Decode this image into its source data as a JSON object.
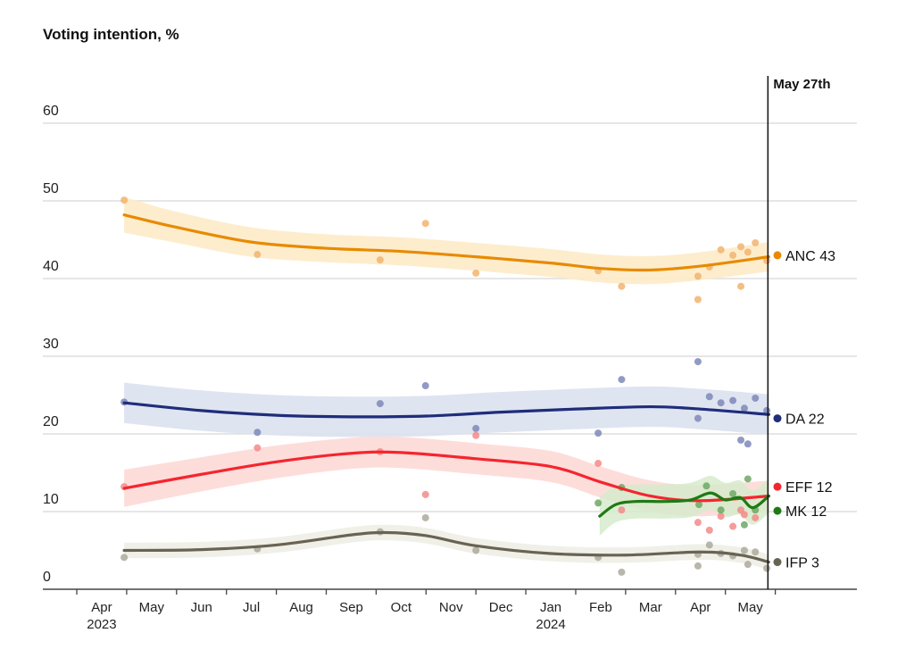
{
  "chart_data": {
    "type": "line",
    "title": "Voting intention, %",
    "xlabel": "",
    "ylabel": "Voting intention, %",
    "ylim": [
      0,
      60
    ],
    "yticks": [
      0,
      10,
      20,
      30,
      40,
      50,
      60
    ],
    "x_unit": "months since Apr 1 2023",
    "xlim": [
      0,
      15.5
    ],
    "xticks": [
      {
        "t": 0.5,
        "label": "Apr",
        "year": "2023"
      },
      {
        "t": 1.5,
        "label": "May"
      },
      {
        "t": 2.5,
        "label": "Jun"
      },
      {
        "t": 3.5,
        "label": "Jul"
      },
      {
        "t": 4.5,
        "label": "Aug"
      },
      {
        "t": 5.5,
        "label": "Sep"
      },
      {
        "t": 6.5,
        "label": "Oct"
      },
      {
        "t": 7.5,
        "label": "Nov"
      },
      {
        "t": 8.5,
        "label": "Dec"
      },
      {
        "t": 9.5,
        "label": "Jan",
        "year": "2024"
      },
      {
        "t": 10.5,
        "label": "Feb"
      },
      {
        "t": 11.5,
        "label": "Mar"
      },
      {
        "t": 12.5,
        "label": "Apr"
      },
      {
        "t": 13.5,
        "label": "May"
      }
    ],
    "tick_marks": [
      0,
      1,
      2,
      3,
      4,
      5,
      6,
      7,
      8,
      9,
      10,
      11,
      12,
      13,
      14
    ],
    "grid": true,
    "reference_line": {
      "t": 13.87,
      "label": "May 27th"
    },
    "series": [
      {
        "name": "ANC",
        "end_value": 43,
        "label": "ANC 43",
        "color": "#E88A00",
        "band": "#FDEBC8",
        "dot": "#F2B36E",
        "trend": [
          [
            0.95,
            48.2
          ],
          [
            2,
            46.6
          ],
          [
            3.5,
            44.7
          ],
          [
            5,
            43.9
          ],
          [
            6.5,
            43.5
          ],
          [
            8,
            42.8
          ],
          [
            9.5,
            42
          ],
          [
            10.5,
            41.3
          ],
          [
            11.5,
            41.1
          ],
          [
            12.5,
            41.6
          ],
          [
            13.87,
            42.8
          ]
        ],
        "band_width": [
          2.3,
          2.0,
          1.9,
          1.8,
          1.8,
          1.8,
          1.8,
          1.8,
          1.8,
          1.8,
          1.9
        ],
        "points": [
          [
            0.95,
            50.1
          ],
          [
            3.62,
            43.1
          ],
          [
            6.08,
            42.4
          ],
          [
            6.99,
            47.1
          ],
          [
            8.0,
            40.7
          ],
          [
            10.45,
            41
          ],
          [
            10.92,
            39
          ],
          [
            12.45,
            40.3
          ],
          [
            12.45,
            37.3
          ],
          [
            12.68,
            41.5
          ],
          [
            12.91,
            43.7
          ],
          [
            13.15,
            43
          ],
          [
            13.31,
            44.1
          ],
          [
            13.31,
            39
          ],
          [
            13.45,
            43.4
          ],
          [
            13.6,
            44.6
          ],
          [
            13.83,
            42.3
          ]
        ]
      },
      {
        "name": "DA",
        "end_value": 22,
        "label": "DA 22",
        "color": "#1F2D7A",
        "band": "#DCE1EF",
        "dot": "#7E88B8",
        "trend": [
          [
            0.95,
            24
          ],
          [
            2.5,
            23
          ],
          [
            4,
            22.4
          ],
          [
            5.5,
            22.2
          ],
          [
            7,
            22.3
          ],
          [
            8.5,
            22.8
          ],
          [
            10,
            23.2
          ],
          [
            11.5,
            23.5
          ],
          [
            12.5,
            23.2
          ],
          [
            13.87,
            22.5
          ]
        ],
        "band_width": [
          2.6,
          2.6,
          2.6,
          2.6,
          2.6,
          2.6,
          2.6,
          2.6,
          2.6,
          2.6
        ],
        "points": [
          [
            0.95,
            24.1
          ],
          [
            3.62,
            20.2
          ],
          [
            6.08,
            23.9
          ],
          [
            6.99,
            26.2
          ],
          [
            8.0,
            20.7
          ],
          [
            10.45,
            20.1
          ],
          [
            10.92,
            27
          ],
          [
            12.45,
            29.3
          ],
          [
            12.45,
            22
          ],
          [
            12.68,
            24.8
          ],
          [
            12.91,
            24
          ],
          [
            13.15,
            24.3
          ],
          [
            13.38,
            23.3
          ],
          [
            13.6,
            24.6
          ],
          [
            13.83,
            23
          ],
          [
            13.31,
            19.2
          ],
          [
            13.45,
            18.7
          ]
        ]
      },
      {
        "name": "EFF",
        "end_value": 12,
        "label": "EFF 12",
        "color": "#F5252F",
        "band": "#FDD9D6",
        "dot": "#F58A8A",
        "trend": [
          [
            0.95,
            13
          ],
          [
            2.5,
            14.8
          ],
          [
            4,
            16.4
          ],
          [
            5.5,
            17.5
          ],
          [
            6.5,
            17.6
          ],
          [
            8,
            16.8
          ],
          [
            9.5,
            15.8
          ],
          [
            10.5,
            13.8
          ],
          [
            11.5,
            12
          ],
          [
            12.5,
            11.4
          ],
          [
            13.87,
            12
          ]
        ],
        "band_width": [
          2.4,
          2.2,
          2.1,
          2.0,
          2.0,
          2.0,
          2.0,
          2.0,
          2.0,
          2.0,
          2.0
        ],
        "points": [
          [
            0.95,
            13.2
          ],
          [
            3.62,
            18.2
          ],
          [
            6.08,
            17.7
          ],
          [
            6.99,
            12.2
          ],
          [
            8.0,
            19.8
          ],
          [
            10.45,
            16.2
          ],
          [
            10.92,
            10.2
          ],
          [
            12.45,
            8.6
          ],
          [
            12.68,
            7.6
          ],
          [
            12.91,
            9.4
          ],
          [
            13.15,
            8.1
          ],
          [
            13.31,
            10.2
          ],
          [
            13.38,
            9.6
          ],
          [
            13.6,
            9.2
          ]
        ]
      },
      {
        "name": "MK",
        "end_value": 12,
        "label": "MK 12",
        "color": "#1E7A14",
        "band": "#D6EBCB",
        "dot": "#6FA865",
        "trend": [
          [
            10.48,
            9.4
          ],
          [
            10.8,
            10.9
          ],
          [
            11.2,
            11.3
          ],
          [
            11.8,
            11.3
          ],
          [
            12.3,
            11.5
          ],
          [
            12.7,
            12.4
          ],
          [
            13.0,
            11.5
          ],
          [
            13.3,
            11.8
          ],
          [
            13.55,
            10.5
          ],
          [
            13.87,
            12
          ]
        ],
        "band_width": [
          2.5,
          2.3,
          2.2,
          2.2,
          2.2,
          2.2,
          2.2,
          2.2,
          2.2,
          2.2
        ],
        "points": [
          [
            10.45,
            11.1
          ],
          [
            10.92,
            13.1
          ],
          [
            12.47,
            10.9
          ],
          [
            12.62,
            13.3
          ],
          [
            12.91,
            10.2
          ],
          [
            13.15,
            12.3
          ],
          [
            13.45,
            14.2
          ],
          [
            13.6,
            10.2
          ],
          [
            13.38,
            8.3
          ]
        ]
      },
      {
        "name": "IFP",
        "end_value": 3,
        "label": "IFP 3",
        "color": "#686353",
        "band": "#EEEEE6",
        "dot": "#ADA99C",
        "trend": [
          [
            0.95,
            5
          ],
          [
            2.5,
            5.1
          ],
          [
            4,
            5.7
          ],
          [
            5.5,
            7
          ],
          [
            6.2,
            7.3
          ],
          [
            7,
            6.9
          ],
          [
            8,
            5.6
          ],
          [
            9.5,
            4.6
          ],
          [
            11,
            4.4
          ],
          [
            12.5,
            4.8
          ],
          [
            13.3,
            4.4
          ],
          [
            13.87,
            3.5
          ]
        ],
        "band_width": [
          1.0,
          1.0,
          1.0,
          1.0,
          1.0,
          1.0,
          1.0,
          1.0,
          1.0,
          1.0,
          1.0,
          1.0
        ],
        "points": [
          [
            0.95,
            4.1
          ],
          [
            3.62,
            5.2
          ],
          [
            6.08,
            7.4
          ],
          [
            6.99,
            9.2
          ],
          [
            8.0,
            5
          ],
          [
            10.45,
            4.1
          ],
          [
            10.92,
            2.2
          ],
          [
            12.45,
            4.5
          ],
          [
            12.45,
            3
          ],
          [
            12.68,
            5.7
          ],
          [
            12.91,
            4.6
          ],
          [
            13.15,
            4.3
          ],
          [
            13.38,
            5
          ],
          [
            13.45,
            3.2
          ],
          [
            13.6,
            4.8
          ],
          [
            13.83,
            2.7
          ]
        ]
      }
    ],
    "end_labels_order": [
      "ANC",
      "DA",
      "EFF",
      "MK",
      "IFP"
    ],
    "end_label_values": {
      "ANC": 43,
      "DA": 22,
      "EFF": 13.2,
      "MK": 10.1,
      "IFP": 3.5
    }
  }
}
